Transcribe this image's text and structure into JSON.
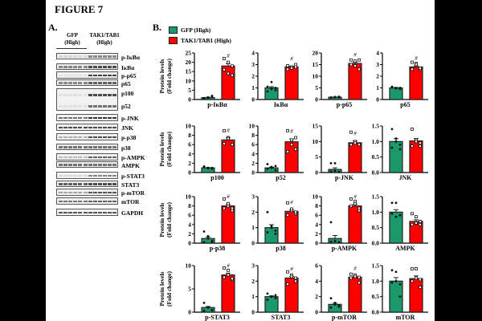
{
  "figure_title": "FIGURE 7",
  "panel_a": {
    "letter": "A.",
    "groups": [
      "GFP",
      "(High)",
      "TAK1/TAB1",
      "(High)"
    ],
    "blots": [
      "p-IκBα",
      "IκBα",
      "p-p65",
      "p65",
      "p100",
      "p52",
      "p-JNK",
      "JNK",
      "p-p38",
      "p38",
      "p-AMPK",
      "AMPK",
      "p-STAT3",
      "STAT3",
      "p-mTOR",
      "mTOR",
      "GAPDH"
    ]
  },
  "panel_b": {
    "letter": "B.",
    "legend": [
      {
        "label": "GFP (High)",
        "color": "#1a9a6a"
      },
      {
        "label": "TAK1/TAB1 (High)",
        "color": "#ff0000"
      }
    ],
    "ylabel_line1": "Protein levels",
    "ylabel_line2": "(Fold change)",
    "significance_mark": "#"
  },
  "chart_data": [
    {
      "type": "bar",
      "title": "p-IκBα",
      "ylim": [
        0,
        25
      ],
      "ticks": [
        "0",
        "5",
        "10",
        "15",
        "20",
        "25"
      ],
      "values": [
        1,
        18
      ],
      "sig": true,
      "points": [
        [
          0.5,
          1,
          1.5,
          0.8,
          1.2,
          2
        ],
        [
          22,
          20,
          18,
          16,
          14,
          13
        ]
      ]
    },
    {
      "type": "bar",
      "title": "IκBα",
      "ylim": [
        0,
        4
      ],
      "ticks": [
        "0",
        "1",
        "2",
        "3",
        "4"
      ],
      "values": [
        1,
        2.8
      ],
      "sig": true,
      "points": [
        [
          0.7,
          0.9,
          1,
          1.1,
          1.5,
          0.8
        ],
        [
          2.6,
          2.8,
          3,
          2.9,
          2.7,
          2.8
        ]
      ]
    },
    {
      "type": "bar",
      "title": "p-p65",
      "ylim": [
        0,
        20
      ],
      "ticks": [
        "0",
        "5",
        "10",
        "15",
        "20"
      ],
      "values": [
        1,
        15.5
      ],
      "sig": true,
      "points": [
        [
          0.8,
          1,
          1.2,
          0.9,
          1.1,
          1
        ],
        [
          17,
          16.5,
          13,
          15,
          14.5,
          17
        ]
      ]
    },
    {
      "type": "bar",
      "title": "p65",
      "ylim": [
        0,
        4
      ],
      "ticks": [
        "0",
        "1",
        "2",
        "3",
        "4"
      ],
      "values": [
        1,
        2.8
      ],
      "sig": true,
      "points": [
        [
          1.1,
          1,
          0.9,
          1.05,
          0.95,
          1
        ],
        [
          3.2,
          3.1,
          2.6,
          2.6,
          3,
          2.7
        ]
      ]
    },
    {
      "type": "bar",
      "title": "p100",
      "ylim": [
        0,
        10
      ],
      "ticks": [
        "0",
        "2",
        "4",
        "6",
        "8",
        "10"
      ],
      "values": [
        1,
        7
      ],
      "sig": true,
      "points": [
        [
          1.3,
          1,
          0.8,
          1.2,
          0.9,
          1
        ],
        [
          9,
          7.5,
          6,
          6.2,
          7.3,
          6
        ]
      ]
    },
    {
      "type": "bar",
      "title": "p52",
      "ylim": [
        0,
        10
      ],
      "ticks": [
        "0",
        "2",
        "4",
        "6",
        "8",
        "10"
      ],
      "values": [
        1,
        6.6
      ],
      "sig": true,
      "points": [
        [
          1.8,
          1.2,
          0.5,
          0.8,
          1,
          1.4
        ],
        [
          9,
          7,
          5,
          4.5,
          6,
          7.5
        ]
      ]
    },
    {
      "type": "bar",
      "title": "p-JNK",
      "ylim": [
        0,
        15
      ],
      "ticks": [
        "0",
        "5",
        "10",
        "15"
      ],
      "values": [
        1,
        9.6
      ],
      "sig": true,
      "points": [
        [
          3,
          3,
          0.2,
          0.3,
          0.5,
          0.2
        ],
        [
          13,
          10,
          9,
          9,
          9.5,
          9
        ]
      ]
    },
    {
      "type": "bar",
      "title": "JNK",
      "ylim": [
        0,
        1.5
      ],
      "ticks": [
        "0.0",
        "0.5",
        "1.0",
        "1.5"
      ],
      "values": [
        1,
        1.02
      ],
      "sig": false,
      "points": [
        [
          1.4,
          1.1,
          0.75,
          0.8,
          1,
          0.9
        ],
        [
          1.4,
          1.05,
          0.85,
          0.85,
          1,
          0.95
        ]
      ]
    },
    {
      "type": "bar",
      "title": "p-p38",
      "ylim": [
        0,
        10
      ],
      "ticks": [
        "0",
        "2",
        "4",
        "6",
        "8",
        "10"
      ],
      "values": [
        1,
        8
      ],
      "sig": true,
      "points": [
        [
          2.5,
          1,
          0.5,
          0.2,
          1.5,
          0.3
        ],
        [
          9.5,
          8,
          7,
          7.5,
          8.5,
          7.5
        ]
      ]
    },
    {
      "type": "bar",
      "title": "p38",
      "ylim": [
        0,
        3
      ],
      "ticks": [
        "0",
        "1",
        "2",
        "3"
      ],
      "values": [
        1,
        2.05
      ],
      "sig": true,
      "points": [
        [
          2,
          1,
          0.8,
          0.7,
          1.1,
          0.6
        ],
        [
          2.6,
          2.1,
          1.9,
          1.8,
          2.2,
          2
        ]
      ]
    },
    {
      "type": "bar",
      "title": "p-AMPK",
      "ylim": [
        0,
        10
      ],
      "ticks": [
        "0",
        "2",
        "4",
        "6",
        "8",
        "10"
      ],
      "values": [
        1,
        8
      ],
      "sig": true,
      "points": [
        [
          4.5,
          0.5,
          0.2,
          0.3,
          0.4,
          0.2
        ],
        [
          9.5,
          9,
          7,
          8,
          8.5,
          7.5
        ]
      ]
    },
    {
      "type": "bar",
      "title": "AMPK",
      "ylim": [
        0,
        1.5
      ],
      "ticks": [
        "0.0",
        "0.5",
        "1.0",
        "1.5"
      ],
      "values": [
        1,
        0.7
      ],
      "sig": false,
      "points": [
        [
          1.3,
          1.3,
          0.9,
          0.95,
          0.85,
          0.9
        ],
        [
          0.95,
          0.85,
          0.6,
          0.6,
          0.65,
          0.7
        ]
      ]
    },
    {
      "type": "bar",
      "title": "p-STAT3",
      "ylim": [
        0,
        10
      ],
      "ticks": [
        "0",
        "5",
        "10"
      ],
      "values": [
        1,
        8
      ],
      "sig": true,
      "points": [
        [
          2,
          1,
          0.5,
          0.3,
          1,
          0.4
        ],
        [
          9.5,
          9,
          7,
          7.5,
          8,
          7.2
        ]
      ]
    },
    {
      "type": "bar",
      "title": "STAT3",
      "ylim": [
        0,
        3
      ],
      "ticks": [
        "0",
        "1",
        "2",
        "3"
      ],
      "values": [
        1,
        2.2
      ],
      "sig": true,
      "points": [
        [
          1.2,
          1,
          0.9,
          0.8,
          1,
          1.1
        ],
        [
          2.6,
          2.4,
          2,
          1.8,
          2.3,
          2.2
        ]
      ]
    },
    {
      "type": "bar",
      "title": "p-mTOR",
      "ylim": [
        0,
        6
      ],
      "ticks": [
        "0",
        "2",
        "4",
        "6"
      ],
      "values": [
        1,
        4.5
      ],
      "sig": true,
      "points": [
        [
          1.8,
          1,
          0.7,
          0.6,
          1.2,
          0.9
        ],
        [
          4.9,
          4.8,
          3.8,
          4.4,
          4.6,
          4.5
        ]
      ]
    },
    {
      "type": "bar",
      "title": "mTOR",
      "ylim": [
        0,
        1.5
      ],
      "ticks": [
        "0.0",
        "0.5",
        "1.0",
        "1.5"
      ],
      "values": [
        1,
        1.08
      ],
      "sig": false,
      "points": [
        [
          1.35,
          1.3,
          0.5,
          0.95,
          1,
          0.9
        ],
        [
          1.4,
          1.4,
          0.8,
          1,
          1.1,
          1.05
        ]
      ]
    }
  ]
}
